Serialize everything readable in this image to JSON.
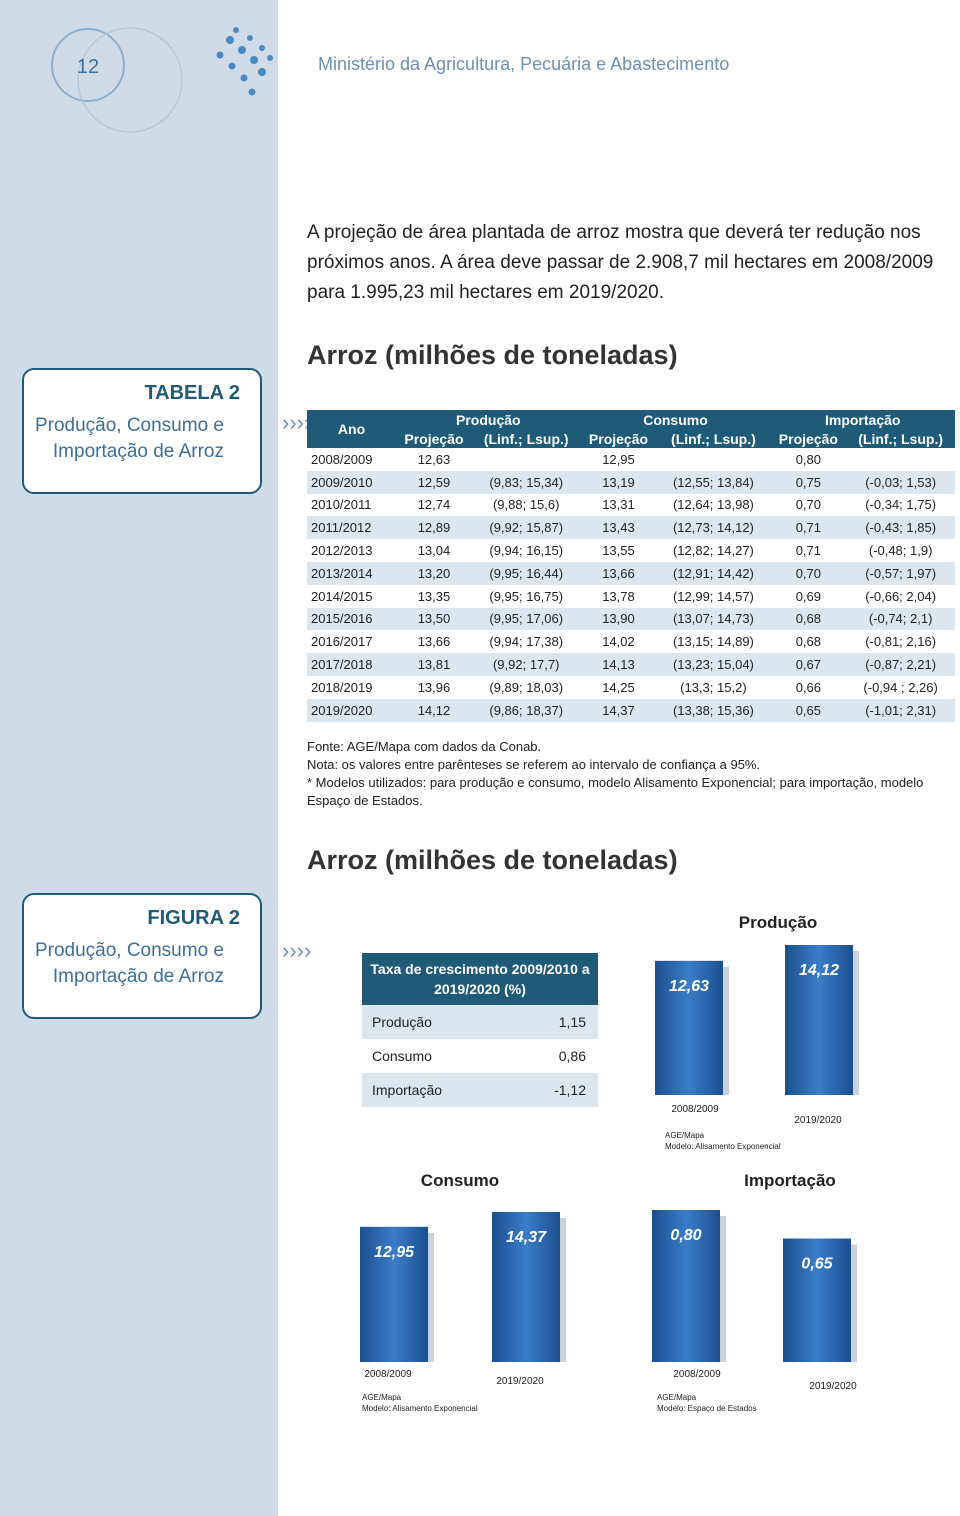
{
  "header": {
    "page_number": "12",
    "title": "Ministério da Agricultura, Pecuária e Abastecimento"
  },
  "paragraph": "A projeção de área plantada de arroz mostra que deverá ter redução nos próximos anos. A área deve passar de 2.908,7 mil hectares em 2008/2009 para 1.995,23 mil hectares em 2019/2020.",
  "table_sidebar": {
    "label": "TABELA 2",
    "caption": "Produção, Consumo e Importação de Arroz"
  },
  "table": {
    "title": "Arroz (milhões de toneladas)",
    "first_header": "Ano",
    "groups": [
      "Produção",
      "Consumo",
      "Importação"
    ],
    "subheaders": [
      "Projeção",
      "(Linf.; Lsup.)",
      "Projeção",
      "(Linf.; Lsup.)",
      "Projeção",
      "(Linf.; Lsup.)"
    ],
    "rows": [
      [
        "2008/2009",
        "12,63",
        null,
        "12,95",
        null,
        "0,80",
        null
      ],
      [
        "2009/2010",
        "12,59",
        "(9,83; 15,34)",
        "13,19",
        "(12,55; 13,84)",
        "0,75",
        "(-0,03; 1,53)"
      ],
      [
        "2010/2011",
        "12,74",
        "(9,88; 15,6)",
        "13,31",
        "(12,64; 13,98)",
        "0,70",
        "(-0,34; 1,75)"
      ],
      [
        "2011/2012",
        "12,89",
        "(9,92; 15,87)",
        "13,43",
        "(12,73; 14,12)",
        "0,71",
        "(-0,43; 1,85)"
      ],
      [
        "2012/2013",
        "13,04",
        "(9,94; 16,15)",
        "13,55",
        "(12,82; 14,27)",
        "0,71",
        "(-0,48; 1,9)"
      ],
      [
        "2013/2014",
        "13,20",
        "(9,95; 16,44)",
        "13,66",
        "(12,91; 14,42)",
        "0,70",
        "(-0,57; 1,97)"
      ],
      [
        "2014/2015",
        "13,35",
        "(9,95; 16,75)",
        "13,78",
        "(12,99; 14,57)",
        "0,69",
        "(-0,66; 2,04)"
      ],
      [
        "2015/2016",
        "13,50",
        "(9,95; 17,06)",
        "13,90",
        "(13,07; 14,73)",
        "0,68",
        "(-0,74; 2,1)"
      ],
      [
        "2016/2017",
        "13,66",
        "(9,94; 17,38)",
        "14,02",
        "(13,15; 14,89)",
        "0,68",
        "(-0,81; 2,16)"
      ],
      [
        "2017/2018",
        "13,81",
        "(9,92; 17,7)",
        "14,13",
        "(13,23; 15,04)",
        "0,67",
        "(-0,87; 2,21)"
      ],
      [
        "2018/2019",
        "13,96",
        "(9,89; 18,03)",
        "14,25",
        "(13,3; 15,2)",
        "0,66",
        "(-0,94 ; 2,26)"
      ],
      [
        "2019/2020",
        "14,12",
        "(9,86; 18,37)",
        "14,37",
        "(13,38; 15,36)",
        "0,65",
        "(-1,01; 2,31)"
      ]
    ],
    "notes": [
      "Fonte: AGE/Mapa com dados da Conab.",
      "Nota: os valores entre parênteses se referem ao intervalo de confiança a 95%.",
      "* Modelos utilizados: para produção e consumo, modelo Alisamento Exponencial; para importação, modelo Espaço de Estados."
    ]
  },
  "figure_sidebar": {
    "label": "FIGURA 2",
    "caption": "Produção, Consumo e Importação de Arroz"
  },
  "figure_title": "Arroz (milhões de toneladas)",
  "growth": {
    "title": "Taxa de crescimento 2009/2010 a 2019/2020 (%)",
    "rows": [
      [
        "Produção",
        "1,15"
      ],
      [
        "Consumo",
        "0,86"
      ],
      [
        "Importação",
        "-1,12"
      ]
    ]
  },
  "chart_data": [
    {
      "type": "bar",
      "title": "Produção",
      "categories": [
        "2008/2009",
        "2019/2020"
      ],
      "values": [
        12.63,
        14.12
      ],
      "value_labels": [
        "12,63",
        "14,12"
      ],
      "source": [
        "AGE/Mapa",
        "Modelo: Alisamento Exponencial"
      ]
    },
    {
      "type": "bar",
      "title": "Consumo",
      "categories": [
        "2008/2009",
        "2019/2020"
      ],
      "values": [
        12.95,
        14.37
      ],
      "value_labels": [
        "12,95",
        "14,37"
      ],
      "source": [
        "AGE/Mapa",
        "Modelo: Alisamento Exponencial"
      ]
    },
    {
      "type": "bar",
      "title": "Importação",
      "categories": [
        "2008/2009",
        "2019/2020"
      ],
      "values": [
        0.8,
        0.65
      ],
      "value_labels": [
        "0,80",
        "0,65"
      ],
      "source": [
        "AGE/Mapa",
        "Modelo: Espaço de Estados"
      ]
    }
  ]
}
